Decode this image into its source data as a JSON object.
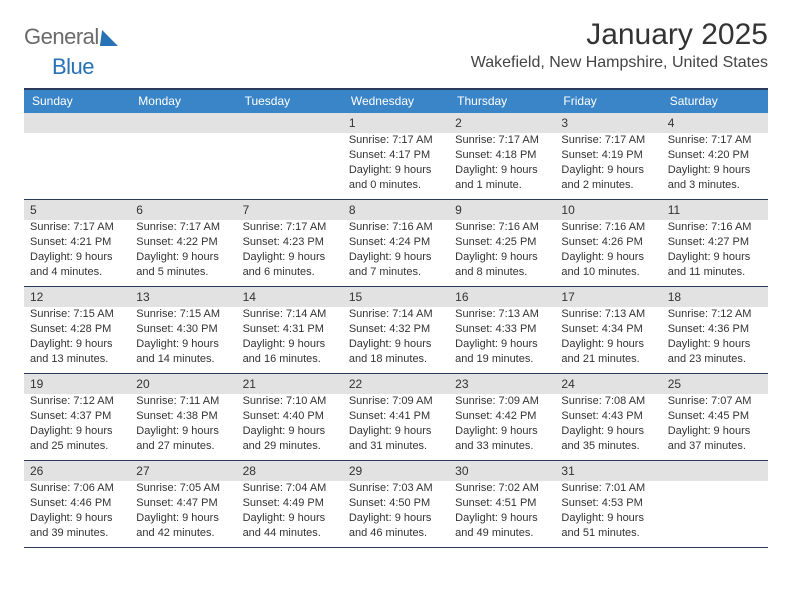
{
  "logo": {
    "word1": "General",
    "word2": "Blue"
  },
  "title": "January 2025",
  "subtitle": "Wakefield, New Hampshire, United States",
  "colors": {
    "header_bg": "#3a85c8",
    "header_text": "#ffffff",
    "rule": "#2a3a5a",
    "daynum_bg": "#e2e2e2",
    "text": "#333333",
    "logo_grey": "#6a6a6a",
    "logo_blue": "#2772b5",
    "page_bg": "#ffffff"
  },
  "daysOfWeek": [
    "Sunday",
    "Monday",
    "Tuesday",
    "Wednesday",
    "Thursday",
    "Friday",
    "Saturday"
  ],
  "weeks": [
    [
      {
        "n": "",
        "lines": []
      },
      {
        "n": "",
        "lines": []
      },
      {
        "n": "",
        "lines": []
      },
      {
        "n": "1",
        "lines": [
          "Sunrise: 7:17 AM",
          "Sunset: 4:17 PM",
          "Daylight: 9 hours",
          "and 0 minutes."
        ]
      },
      {
        "n": "2",
        "lines": [
          "Sunrise: 7:17 AM",
          "Sunset: 4:18 PM",
          "Daylight: 9 hours",
          "and 1 minute."
        ]
      },
      {
        "n": "3",
        "lines": [
          "Sunrise: 7:17 AM",
          "Sunset: 4:19 PM",
          "Daylight: 9 hours",
          "and 2 minutes."
        ]
      },
      {
        "n": "4",
        "lines": [
          "Sunrise: 7:17 AM",
          "Sunset: 4:20 PM",
          "Daylight: 9 hours",
          "and 3 minutes."
        ]
      }
    ],
    [
      {
        "n": "5",
        "lines": [
          "Sunrise: 7:17 AM",
          "Sunset: 4:21 PM",
          "Daylight: 9 hours",
          "and 4 minutes."
        ]
      },
      {
        "n": "6",
        "lines": [
          "Sunrise: 7:17 AM",
          "Sunset: 4:22 PM",
          "Daylight: 9 hours",
          "and 5 minutes."
        ]
      },
      {
        "n": "7",
        "lines": [
          "Sunrise: 7:17 AM",
          "Sunset: 4:23 PM",
          "Daylight: 9 hours",
          "and 6 minutes."
        ]
      },
      {
        "n": "8",
        "lines": [
          "Sunrise: 7:16 AM",
          "Sunset: 4:24 PM",
          "Daylight: 9 hours",
          "and 7 minutes."
        ]
      },
      {
        "n": "9",
        "lines": [
          "Sunrise: 7:16 AM",
          "Sunset: 4:25 PM",
          "Daylight: 9 hours",
          "and 8 minutes."
        ]
      },
      {
        "n": "10",
        "lines": [
          "Sunrise: 7:16 AM",
          "Sunset: 4:26 PM",
          "Daylight: 9 hours",
          "and 10 minutes."
        ]
      },
      {
        "n": "11",
        "lines": [
          "Sunrise: 7:16 AM",
          "Sunset: 4:27 PM",
          "Daylight: 9 hours",
          "and 11 minutes."
        ]
      }
    ],
    [
      {
        "n": "12",
        "lines": [
          "Sunrise: 7:15 AM",
          "Sunset: 4:28 PM",
          "Daylight: 9 hours",
          "and 13 minutes."
        ]
      },
      {
        "n": "13",
        "lines": [
          "Sunrise: 7:15 AM",
          "Sunset: 4:30 PM",
          "Daylight: 9 hours",
          "and 14 minutes."
        ]
      },
      {
        "n": "14",
        "lines": [
          "Sunrise: 7:14 AM",
          "Sunset: 4:31 PM",
          "Daylight: 9 hours",
          "and 16 minutes."
        ]
      },
      {
        "n": "15",
        "lines": [
          "Sunrise: 7:14 AM",
          "Sunset: 4:32 PM",
          "Daylight: 9 hours",
          "and 18 minutes."
        ]
      },
      {
        "n": "16",
        "lines": [
          "Sunrise: 7:13 AM",
          "Sunset: 4:33 PM",
          "Daylight: 9 hours",
          "and 19 minutes."
        ]
      },
      {
        "n": "17",
        "lines": [
          "Sunrise: 7:13 AM",
          "Sunset: 4:34 PM",
          "Daylight: 9 hours",
          "and 21 minutes."
        ]
      },
      {
        "n": "18",
        "lines": [
          "Sunrise: 7:12 AM",
          "Sunset: 4:36 PM",
          "Daylight: 9 hours",
          "and 23 minutes."
        ]
      }
    ],
    [
      {
        "n": "19",
        "lines": [
          "Sunrise: 7:12 AM",
          "Sunset: 4:37 PM",
          "Daylight: 9 hours",
          "and 25 minutes."
        ]
      },
      {
        "n": "20",
        "lines": [
          "Sunrise: 7:11 AM",
          "Sunset: 4:38 PM",
          "Daylight: 9 hours",
          "and 27 minutes."
        ]
      },
      {
        "n": "21",
        "lines": [
          "Sunrise: 7:10 AM",
          "Sunset: 4:40 PM",
          "Daylight: 9 hours",
          "and 29 minutes."
        ]
      },
      {
        "n": "22",
        "lines": [
          "Sunrise: 7:09 AM",
          "Sunset: 4:41 PM",
          "Daylight: 9 hours",
          "and 31 minutes."
        ]
      },
      {
        "n": "23",
        "lines": [
          "Sunrise: 7:09 AM",
          "Sunset: 4:42 PM",
          "Daylight: 9 hours",
          "and 33 minutes."
        ]
      },
      {
        "n": "24",
        "lines": [
          "Sunrise: 7:08 AM",
          "Sunset: 4:43 PM",
          "Daylight: 9 hours",
          "and 35 minutes."
        ]
      },
      {
        "n": "25",
        "lines": [
          "Sunrise: 7:07 AM",
          "Sunset: 4:45 PM",
          "Daylight: 9 hours",
          "and 37 minutes."
        ]
      }
    ],
    [
      {
        "n": "26",
        "lines": [
          "Sunrise: 7:06 AM",
          "Sunset: 4:46 PM",
          "Daylight: 9 hours",
          "and 39 minutes."
        ]
      },
      {
        "n": "27",
        "lines": [
          "Sunrise: 7:05 AM",
          "Sunset: 4:47 PM",
          "Daylight: 9 hours",
          "and 42 minutes."
        ]
      },
      {
        "n": "28",
        "lines": [
          "Sunrise: 7:04 AM",
          "Sunset: 4:49 PM",
          "Daylight: 9 hours",
          "and 44 minutes."
        ]
      },
      {
        "n": "29",
        "lines": [
          "Sunrise: 7:03 AM",
          "Sunset: 4:50 PM",
          "Daylight: 9 hours",
          "and 46 minutes."
        ]
      },
      {
        "n": "30",
        "lines": [
          "Sunrise: 7:02 AM",
          "Sunset: 4:51 PM",
          "Daylight: 9 hours",
          "and 49 minutes."
        ]
      },
      {
        "n": "31",
        "lines": [
          "Sunrise: 7:01 AM",
          "Sunset: 4:53 PM",
          "Daylight: 9 hours",
          "and 51 minutes."
        ]
      },
      {
        "n": "",
        "lines": []
      }
    ]
  ]
}
